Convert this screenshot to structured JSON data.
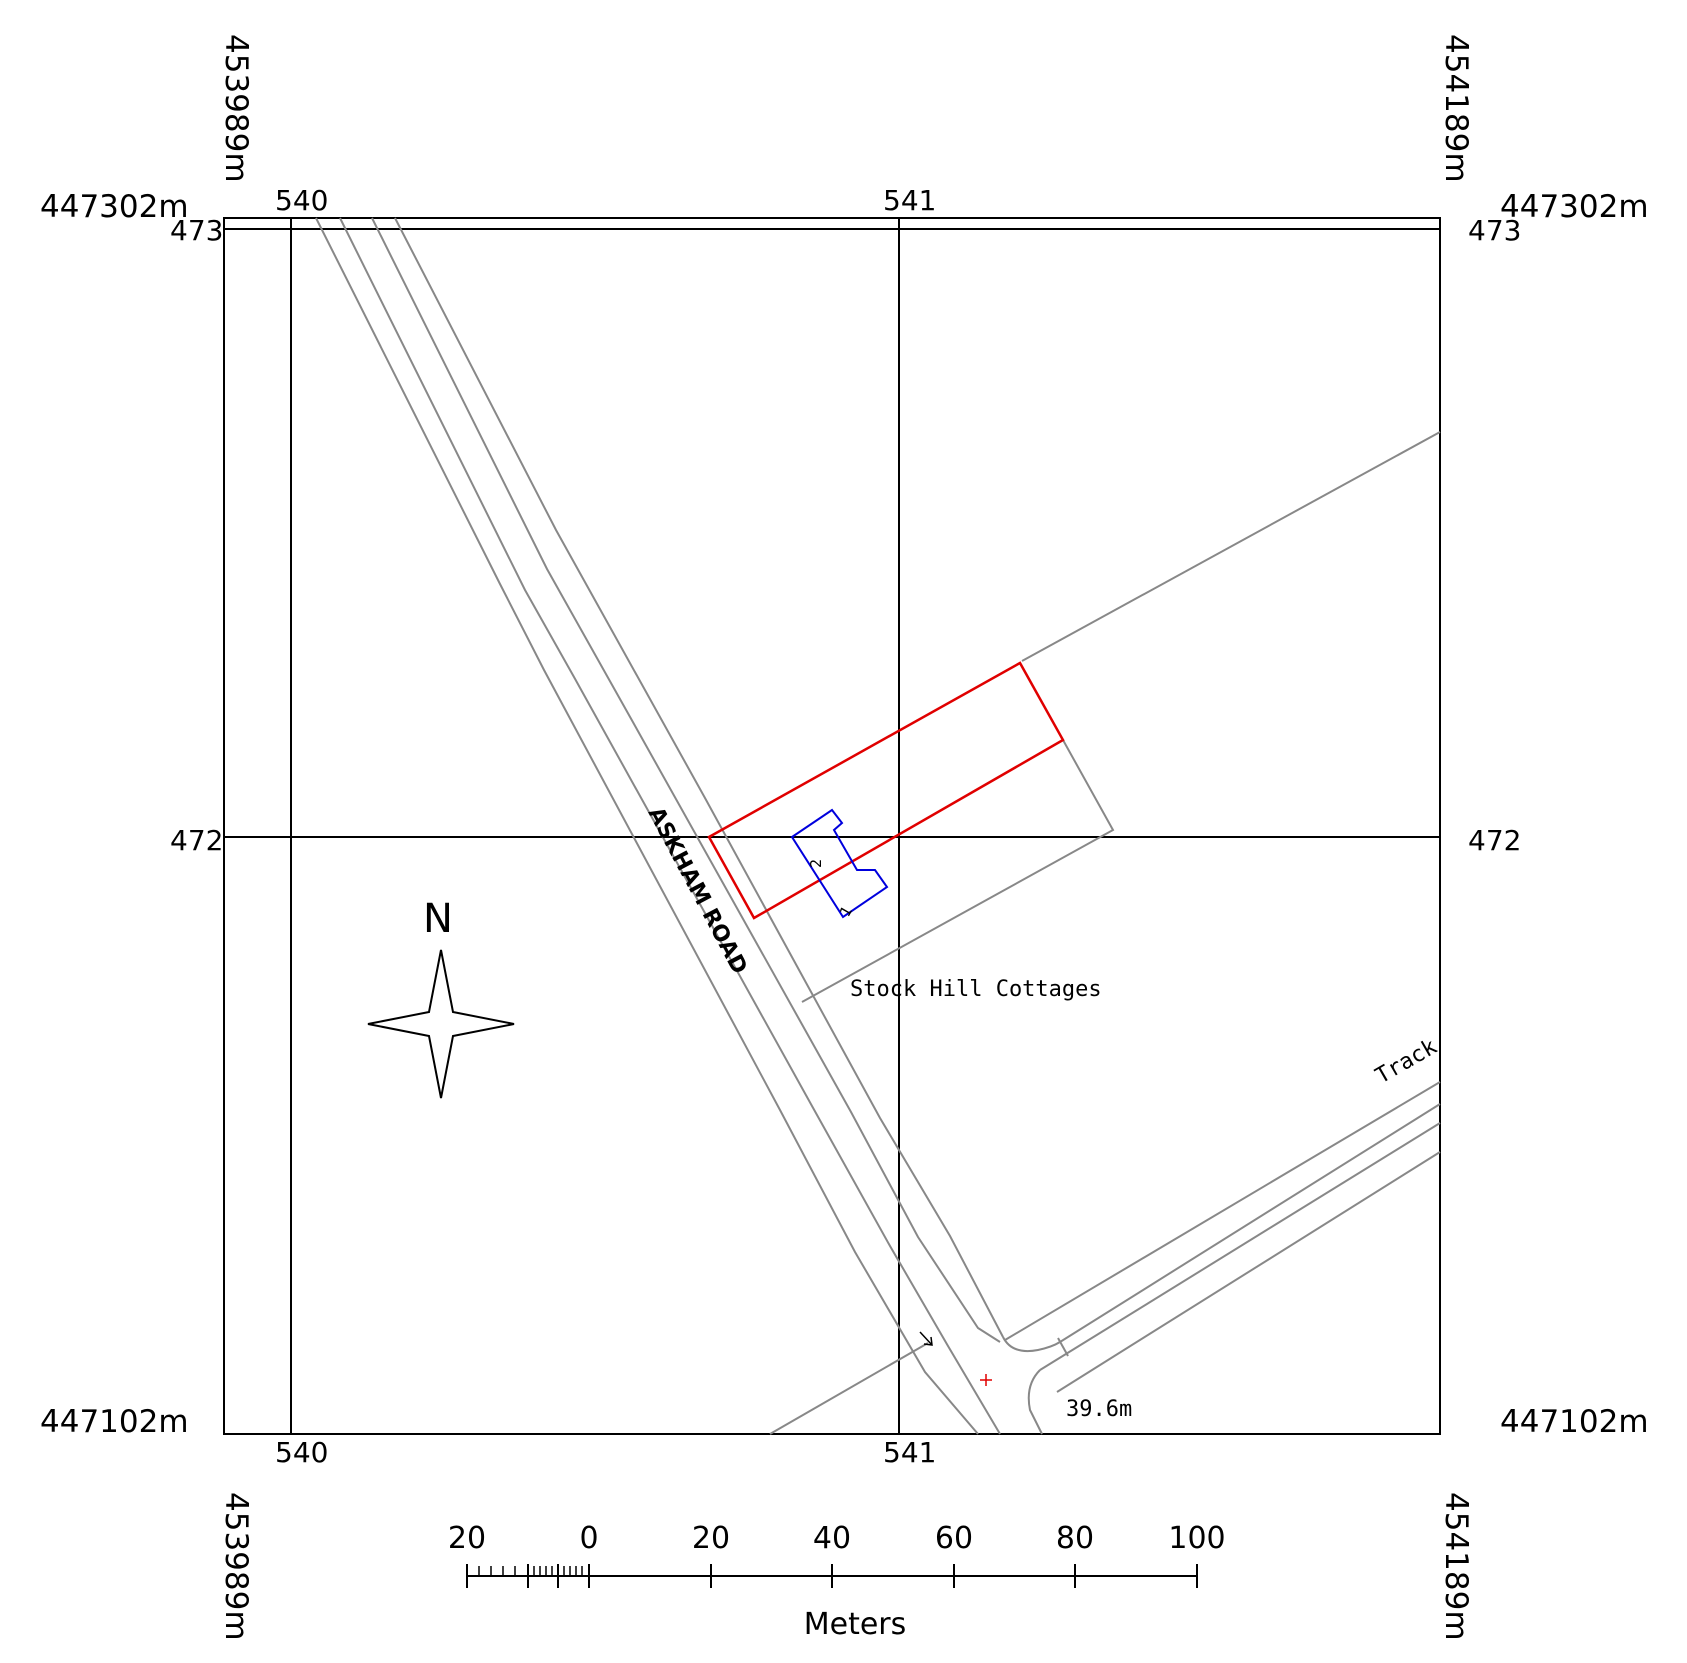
{
  "corner_eastings": {
    "left": "453989m",
    "right": "454189m"
  },
  "corner_northings": {
    "top": "447302m",
    "bottom": "447102m"
  },
  "grid_labels": {
    "easting_540": "540",
    "easting_541": "541",
    "northing_473": "473",
    "northing_472": "472"
  },
  "map_labels": {
    "road_name": "ASKHAM ROAD",
    "place_name": "Stock Hill Cottages",
    "track": "Track",
    "spot_height": "39.6m",
    "building_unit_1": "1",
    "building_unit_2": "2"
  },
  "north_arrow": {
    "label": "N",
    "icon": "compass-star-icon"
  },
  "scale_bar": {
    "unit_label": "Meters",
    "tick_labels": [
      "20",
      "0",
      "20",
      "40",
      "60",
      "80",
      "100"
    ]
  },
  "colors": {
    "site_boundary": "#e00000",
    "building": "#0000dd",
    "roads": "#888888",
    "grid": "#000000",
    "spot_marker": "#e00000"
  }
}
